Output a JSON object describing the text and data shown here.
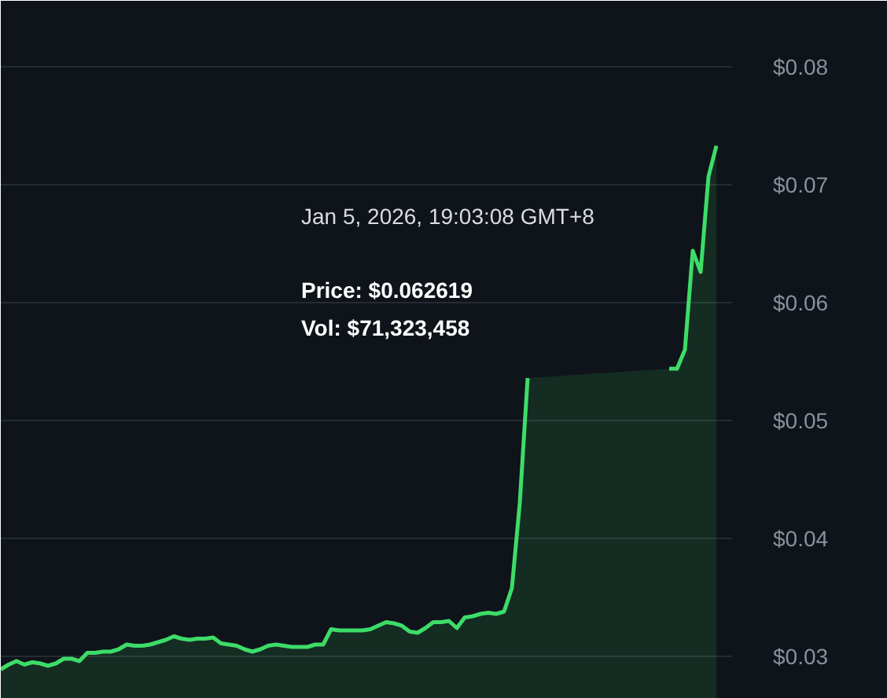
{
  "chart_data": {
    "type": "area",
    "categories": [
      null,
      null,
      null,
      null,
      null,
      null,
      null,
      null,
      null,
      null,
      null,
      null,
      null,
      null,
      null,
      null,
      null,
      null,
      null,
      null,
      null,
      null,
      null,
      null,
      null,
      null,
      null,
      null,
      null,
      null,
      null,
      null,
      null,
      null,
      null,
      null,
      null,
      null,
      null,
      null,
      null,
      null,
      null,
      null,
      null,
      null,
      null,
      null,
      null,
      null,
      null,
      null,
      null,
      null,
      null,
      null,
      null,
      null,
      null,
      null,
      null,
      null,
      null,
      null,
      null,
      null,
      null,
      null,
      null,
      null,
      null,
      null,
      null,
      null,
      null,
      null,
      null,
      null,
      null,
      null,
      null,
      null,
      null,
      null,
      null,
      null,
      null,
      null,
      null,
      null,
      null,
      null
    ],
    "series": [
      {
        "color": "#3ddc68",
        "values": [
          0.0289,
          0.0293,
          0.0296,
          0.0293,
          0.0295,
          0.0294,
          0.0292,
          0.0294,
          0.0298,
          0.0298,
          0.0296,
          0.0303,
          0.0303,
          0.0304,
          0.0304,
          0.0306,
          0.031,
          0.0309,
          0.0309,
          0.031,
          0.0312,
          0.0314,
          0.0317,
          0.0315,
          0.0314,
          0.0315,
          0.0315,
          0.0316,
          0.0311,
          0.031,
          0.0309,
          0.0306,
          0.0304,
          0.0306,
          0.0309,
          0.031,
          0.0309,
          0.0308,
          0.0308,
          0.0308,
          0.031,
          0.031,
          0.0323,
          0.0322,
          0.0322,
          0.0322,
          0.0322,
          0.0323,
          0.0326,
          0.0329,
          0.0328,
          0.0326,
          0.0321,
          0.032,
          0.0324,
          0.0329,
          0.0329,
          0.033,
          0.0324,
          0.0333,
          0.0334,
          0.0336,
          0.0337,
          0.0336,
          0.0338,
          0.0358,
          0.043,
          0.0536,
          null,
          null,
          null,
          null,
          null,
          null,
          null,
          null,
          null,
          null,
          null,
          null,
          null,
          null,
          null,
          null,
          null,
          0.0544,
          0.0544,
          0.056,
          0.0644,
          0.0626,
          0.0707,
          0.0733
        ]
      }
    ],
    "ylim": [
      0.0264,
      0.0856
    ],
    "yticks": [
      {
        "value": 0.03,
        "label": "$0.03"
      },
      {
        "value": 0.04,
        "label": "$0.04"
      },
      {
        "value": 0.05,
        "label": "$0.05"
      },
      {
        "value": 0.06,
        "label": "$0.06"
      },
      {
        "value": 0.07,
        "label": "$0.07"
      },
      {
        "value": 0.08,
        "label": "$0.08"
      }
    ],
    "grid": "y",
    "tick_labels": "y",
    "annotations": [
      "Jan 5, 2026, 19:03:08 GMT+8",
      "Price: $0.062619",
      "Vol: $71,323,458"
    ]
  }
}
